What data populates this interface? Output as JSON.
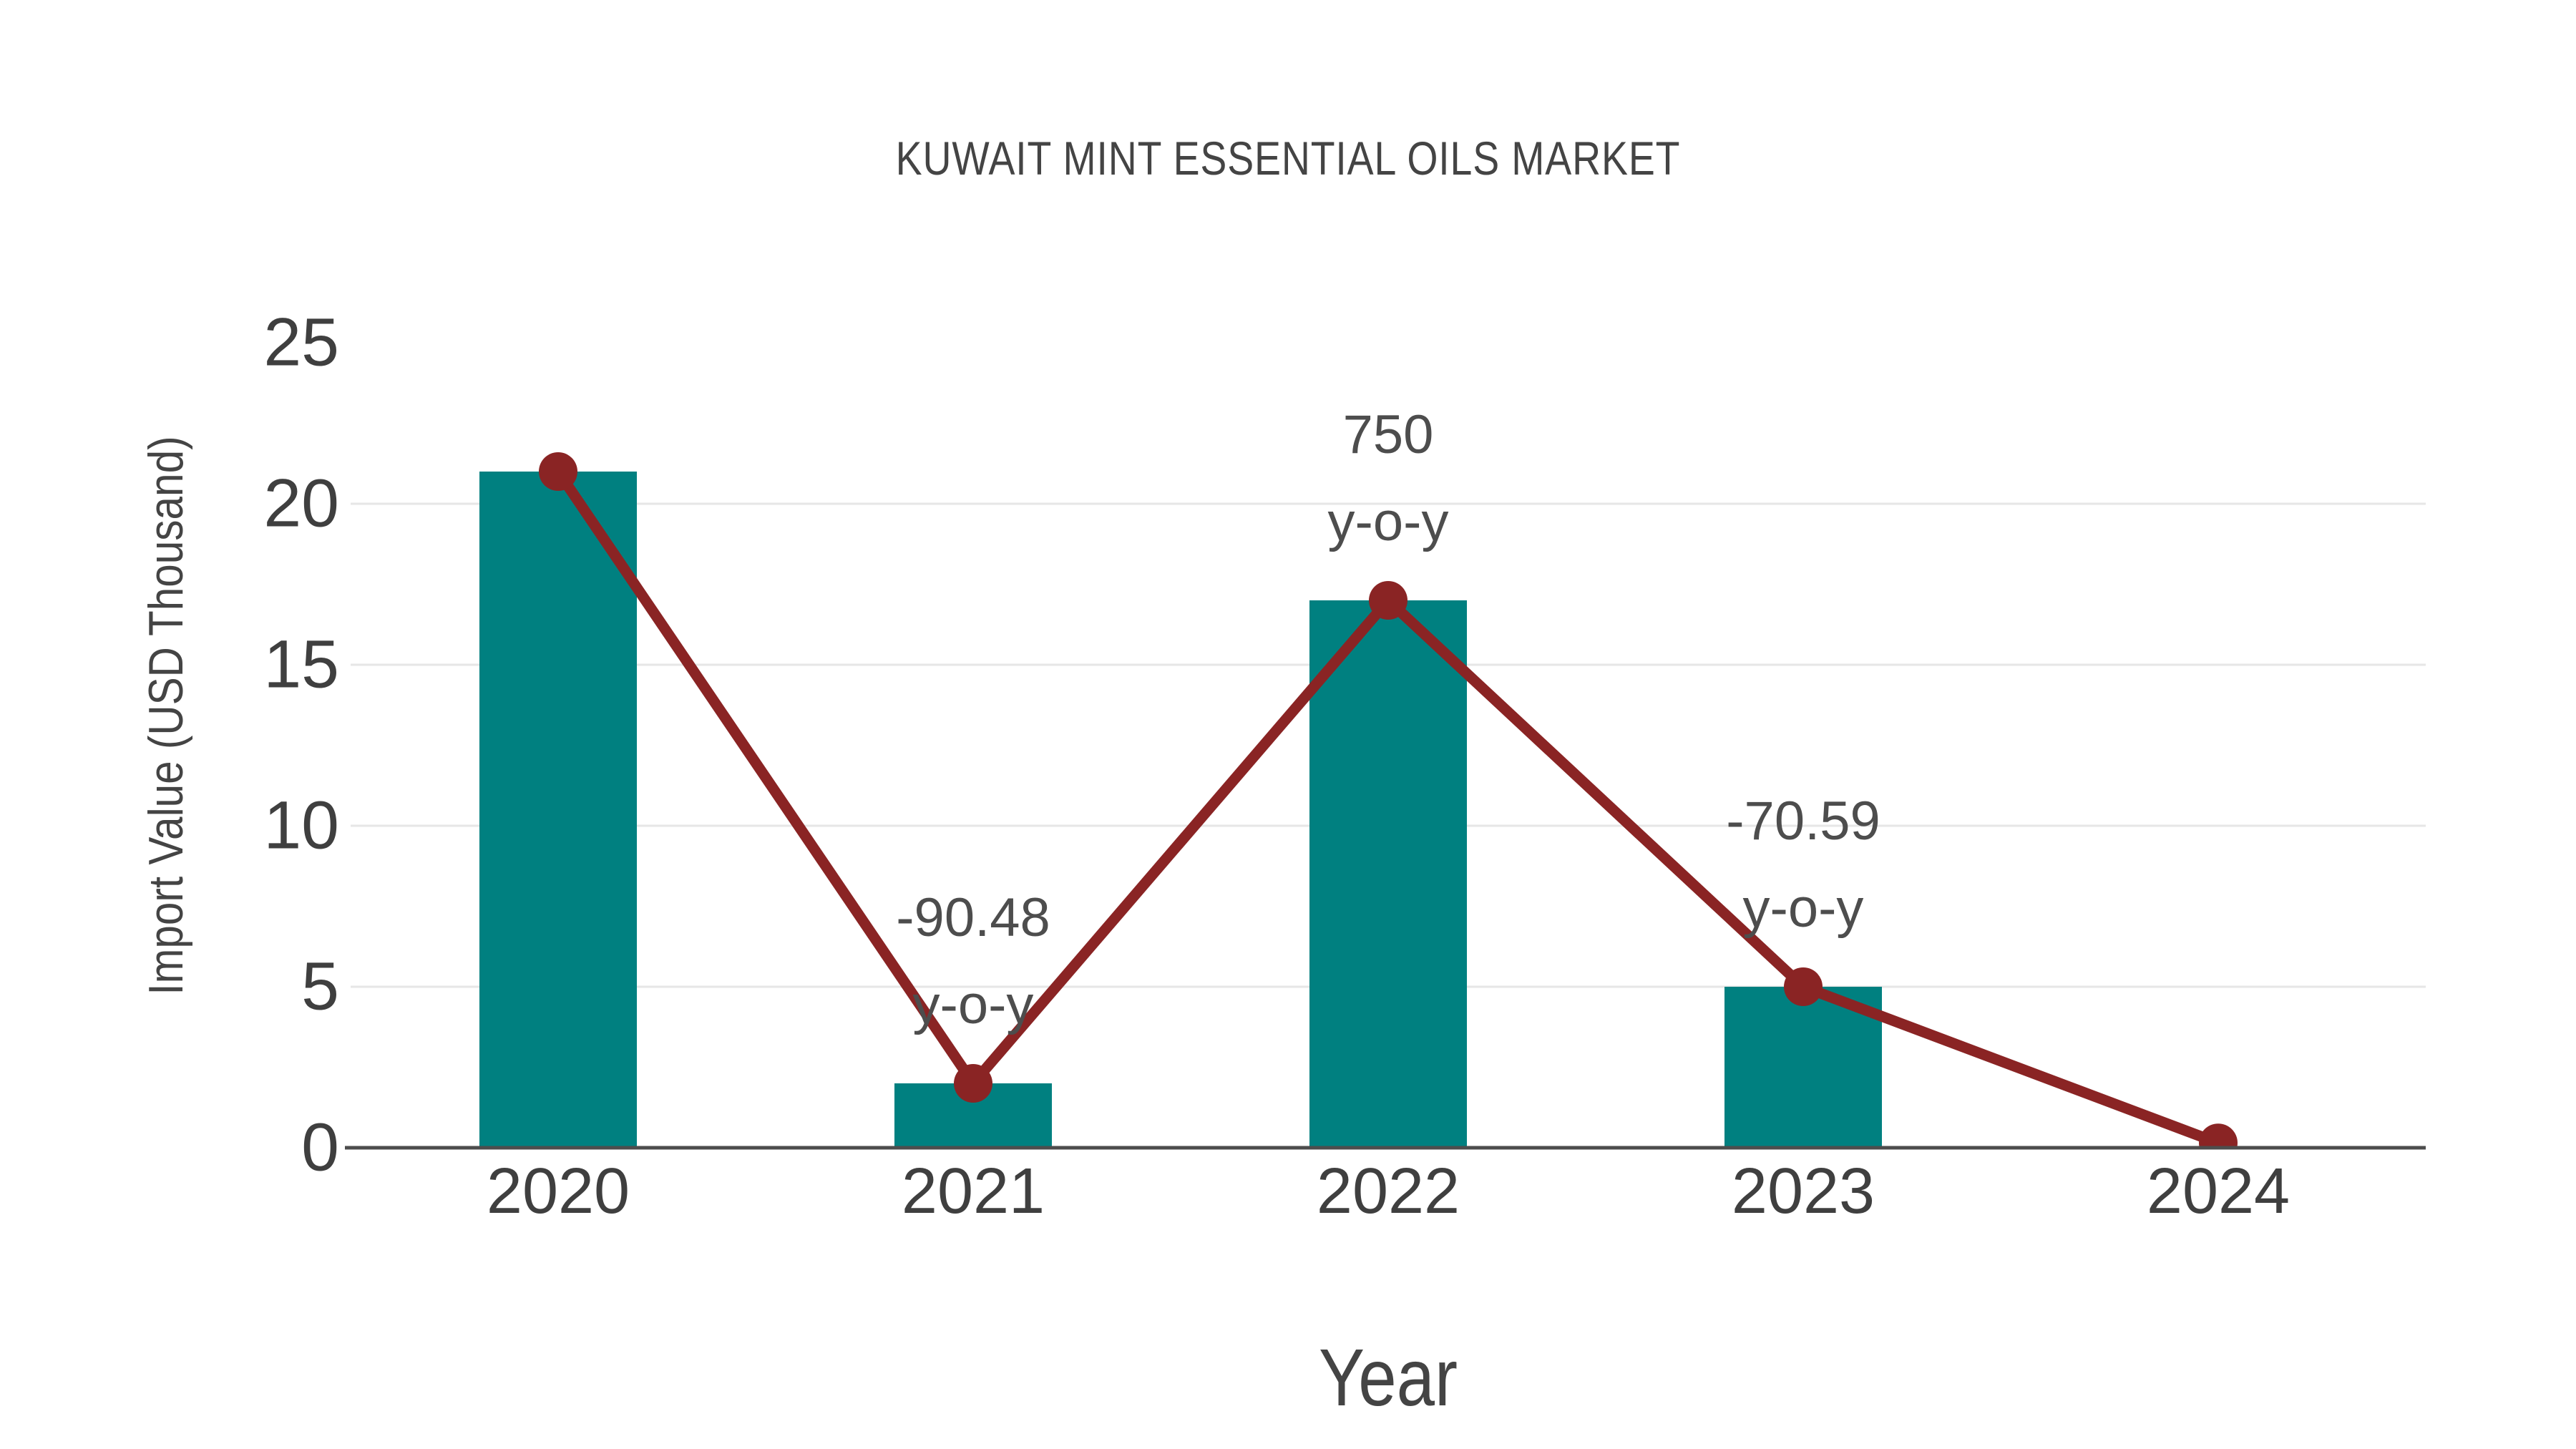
{
  "chart_data": {
    "type": "bar",
    "subtype": "bar-and-line-combo",
    "title": "KUWAIT MINT ESSENTIAL OILS MARKET",
    "xlabel": "Year",
    "ylabel": "Import Value (USD Thousand)",
    "categories": [
      "2020",
      "2021",
      "2022",
      "2023",
      "2024"
    ],
    "series": [
      {
        "name": "Import Value (bars)",
        "type": "bar",
        "color": "#008080",
        "values": [
          21,
          2,
          17,
          5,
          0
        ]
      },
      {
        "name": "Import Value (trend line)",
        "type": "line",
        "color": "#8a2424",
        "values": [
          21,
          2,
          17,
          5,
          0.15
        ]
      }
    ],
    "annotations": [
      {
        "category": "2021",
        "lines": [
          "-90.48",
          "y-o-y"
        ]
      },
      {
        "category": "2022",
        "lines": [
          "750",
          "y-o-y"
        ]
      },
      {
        "category": "2023",
        "lines": [
          "-70.59",
          "y-o-y"
        ]
      }
    ],
    "ylim": [
      0,
      25
    ],
    "yticks": [
      0,
      5,
      10,
      15,
      20,
      25
    ],
    "grid": "horizontal gridlines at 5, 10, 15, 20 only",
    "legend": "none",
    "grid_color": "#e6e6e6",
    "axis_line_color": "#4d4d4d",
    "tick_label_color": "#3f3f3f",
    "title_color": "#444444",
    "annotation_color": "#4d4d4d",
    "background_color": "#ffffff"
  }
}
